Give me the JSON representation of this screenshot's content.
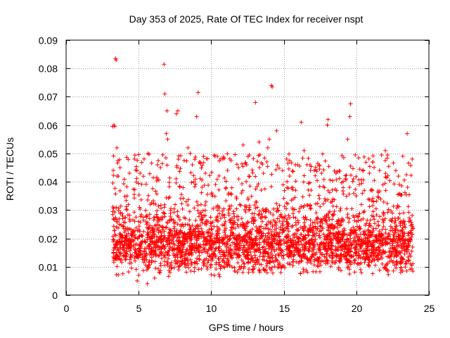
{
  "chart_data": {
    "type": "scatter",
    "title": "Day 353 of 2025, Rate Of TEC Index for receiver nspt",
    "xlabel": "GPS time / hours",
    "ylabel": "ROTI / TECUs",
    "xlim": [
      0,
      25
    ],
    "ylim": [
      0,
      0.09
    ],
    "x_ticks": [
      0,
      5,
      10,
      15,
      20,
      25
    ],
    "x_tick_labels": [
      "0",
      "5",
      "10",
      "15",
      "20",
      "25"
    ],
    "y_ticks": [
      0,
      0.01,
      0.02,
      0.03,
      0.04,
      0.05,
      0.06,
      0.07,
      0.08,
      0.09
    ],
    "y_tick_labels": [
      "0",
      "0.01",
      "0.02",
      "0.03",
      "0.04",
      "0.05",
      "0.06",
      "0.07",
      "0.08",
      "0.09"
    ],
    "grid": true,
    "marker": "+",
    "color": "#ff0000",
    "x_range_of_data": [
      3.2,
      23.9
    ],
    "series": [
      {
        "name": "ROTI",
        "x": [
          3.4,
          3.45,
          6.75,
          6.8,
          7.6,
          7.7,
          9.1,
          13.05,
          14.15,
          14.2,
          19.6,
          19.55,
          18.05,
          3.2,
          3.3,
          3.35,
          3.5,
          3.6,
          4.2,
          5.1,
          6.3,
          6.5,
          6.9,
          7.0,
          8.4,
          8.7,
          9.0,
          10.3,
          11.2,
          12.6,
          13.3,
          13.6,
          14.0,
          14.5,
          15.2,
          16.2,
          16.4,
          17.1,
          18.0,
          18.6,
          19.4,
          20.2,
          21.0,
          22.0,
          22.9,
          23.5,
          23.85,
          6.95,
          3.25,
          9.6,
          10.8,
          11.9,
          12.2,
          15.8,
          17.6,
          20.9,
          23.2,
          8.8,
          9.2,
          13.9,
          16.6,
          19.8,
          21.6,
          4.9,
          5.6,
          6.1
        ],
        "y": [
          0.0835,
          0.083,
          0.0815,
          0.071,
          0.064,
          0.065,
          0.0715,
          0.068,
          0.074,
          0.0735,
          0.0675,
          0.063,
          0.062,
          0.0595,
          0.06,
          0.0595,
          0.052,
          0.042,
          0.035,
          0.043,
          0.046,
          0.045,
          0.057,
          0.055,
          0.052,
          0.046,
          0.063,
          0.039,
          0.036,
          0.042,
          0.054,
          0.043,
          0.055,
          0.058,
          0.048,
          0.061,
          0.051,
          0.044,
          0.06,
          0.043,
          0.055,
          0.039,
          0.037,
          0.051,
          0.042,
          0.057,
          0.048,
          0.065,
          0.044,
          0.043,
          0.048,
          0.041,
          0.053,
          0.046,
          0.043,
          0.043,
          0.049,
          0.04,
          0.047,
          0.052,
          0.046,
          0.041,
          0.044,
          0.005,
          0.004,
          0.006
        ]
      }
    ],
    "baseline_band": {
      "description_values_min": 0.006,
      "description_values_max": 0.038,
      "density_center": 0.014
    }
  }
}
